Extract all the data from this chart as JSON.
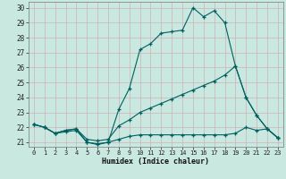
{
  "xlabel": "Humidex (Indice chaleur)",
  "bg_color": "#c8e8e0",
  "grid_color": "#b0d4cc",
  "line_color": "#006060",
  "xlim": [
    -0.5,
    23.5
  ],
  "ylim": [
    20.7,
    30.4
  ],
  "xticks": [
    0,
    1,
    2,
    3,
    4,
    5,
    6,
    7,
    8,
    9,
    10,
    11,
    12,
    13,
    14,
    15,
    16,
    17,
    18,
    19,
    20,
    21,
    22,
    23
  ],
  "yticks": [
    21,
    22,
    23,
    24,
    25,
    26,
    27,
    28,
    29,
    30
  ],
  "line1_x": [
    0,
    1,
    2,
    3,
    4,
    5,
    6,
    7,
    8,
    9,
    10,
    11,
    12,
    13,
    14,
    15,
    16,
    17,
    18,
    19,
    20,
    21,
    22,
    23
  ],
  "line1_y": [
    22.2,
    22.0,
    21.6,
    21.8,
    21.9,
    21.0,
    20.9,
    21.0,
    23.2,
    24.6,
    27.2,
    27.6,
    28.3,
    28.4,
    28.5,
    30.0,
    29.4,
    29.8,
    29.0,
    26.1,
    24.0,
    22.8,
    21.9,
    21.3
  ],
  "line2_x": [
    0,
    1,
    2,
    3,
    4,
    5,
    6,
    7,
    8,
    9,
    10,
    11,
    12,
    13,
    14,
    15,
    16,
    17,
    18,
    19,
    20,
    21,
    22,
    23
  ],
  "line2_y": [
    22.2,
    22.0,
    21.6,
    21.8,
    21.9,
    21.2,
    21.1,
    21.2,
    22.1,
    22.5,
    23.0,
    23.3,
    23.6,
    23.9,
    24.2,
    24.5,
    24.8,
    25.1,
    25.5,
    26.1,
    24.0,
    22.8,
    21.9,
    21.3
  ],
  "line3_x": [
    0,
    1,
    2,
    3,
    4,
    5,
    6,
    7,
    8,
    9,
    10,
    11,
    12,
    13,
    14,
    15,
    16,
    17,
    18,
    19,
    20,
    21,
    22,
    23
  ],
  "line3_y": [
    22.2,
    22.0,
    21.6,
    21.7,
    21.8,
    21.0,
    20.85,
    21.0,
    21.2,
    21.4,
    21.5,
    21.5,
    21.5,
    21.5,
    21.5,
    21.5,
    21.5,
    21.5,
    21.5,
    21.6,
    22.0,
    21.8,
    21.9,
    21.3
  ]
}
